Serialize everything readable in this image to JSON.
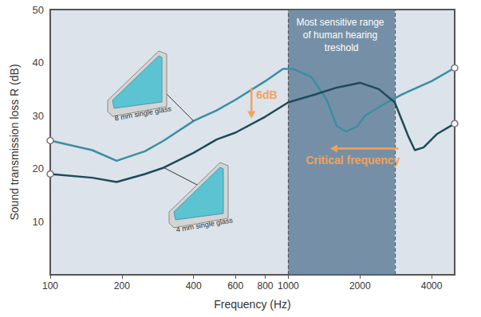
{
  "chart_data": {
    "type": "line",
    "x_label": "Frequency (Hz)",
    "y_label": "Sound transmission loss R (dB)",
    "log": "x",
    "grid": false,
    "xlim": [
      100,
      5000
    ],
    "xticks": [
      100,
      200,
      400,
      600,
      800,
      1000,
      2000,
      4000
    ],
    "ylim": [
      0,
      50
    ],
    "yticks": [
      10,
      20,
      30,
      40,
      50
    ],
    "series": [
      {
        "name": "8 mm single glass",
        "color": "#3a8ea2",
        "marker": "circle",
        "x": [
          100,
          150,
          190,
          250,
          300,
          400,
          500,
          600,
          800,
          950,
          1050,
          1250,
          1450,
          1600,
          1750,
          1950,
          2100,
          2600,
          3000,
          4000,
          5000
        ],
        "values": [
          25.3,
          23.5,
          21.5,
          23.3,
          25.3,
          29,
          31,
          33,
          36.5,
          38.8,
          38.8,
          37.3,
          33,
          28,
          27,
          28,
          30,
          32.5,
          34,
          36.5,
          39
        ]
      },
      {
        "name": "4 mm single glass",
        "color": "#1e4a5a",
        "marker": "circle",
        "x": [
          100,
          150,
          190,
          250,
          300,
          400,
          500,
          600,
          800,
          1000,
          1300,
          1600,
          2000,
          2400,
          2800,
          3200,
          3400,
          3700,
          4200,
          5000
        ],
        "values": [
          19,
          18.3,
          17.5,
          19,
          20.2,
          23,
          25.5,
          26.8,
          29.8,
          32.5,
          34,
          35.3,
          36.2,
          35,
          32.5,
          26,
          23.5,
          24,
          26.5,
          28.5
        ]
      }
    ],
    "band": {
      "x": [
        1000,
        2800
      ],
      "label": "Most sensitive range of human hearing treshold"
    },
    "annotations": [
      {
        "text": "6dB",
        "x": 700,
        "y": [
          35.3,
          29.5
        ],
        "color": "#f5a05a"
      },
      {
        "text": "Critical frequency",
        "x": [
          2900,
          1500
        ],
        "y": 23.8,
        "color": "#f5a05a"
      }
    ]
  }
}
